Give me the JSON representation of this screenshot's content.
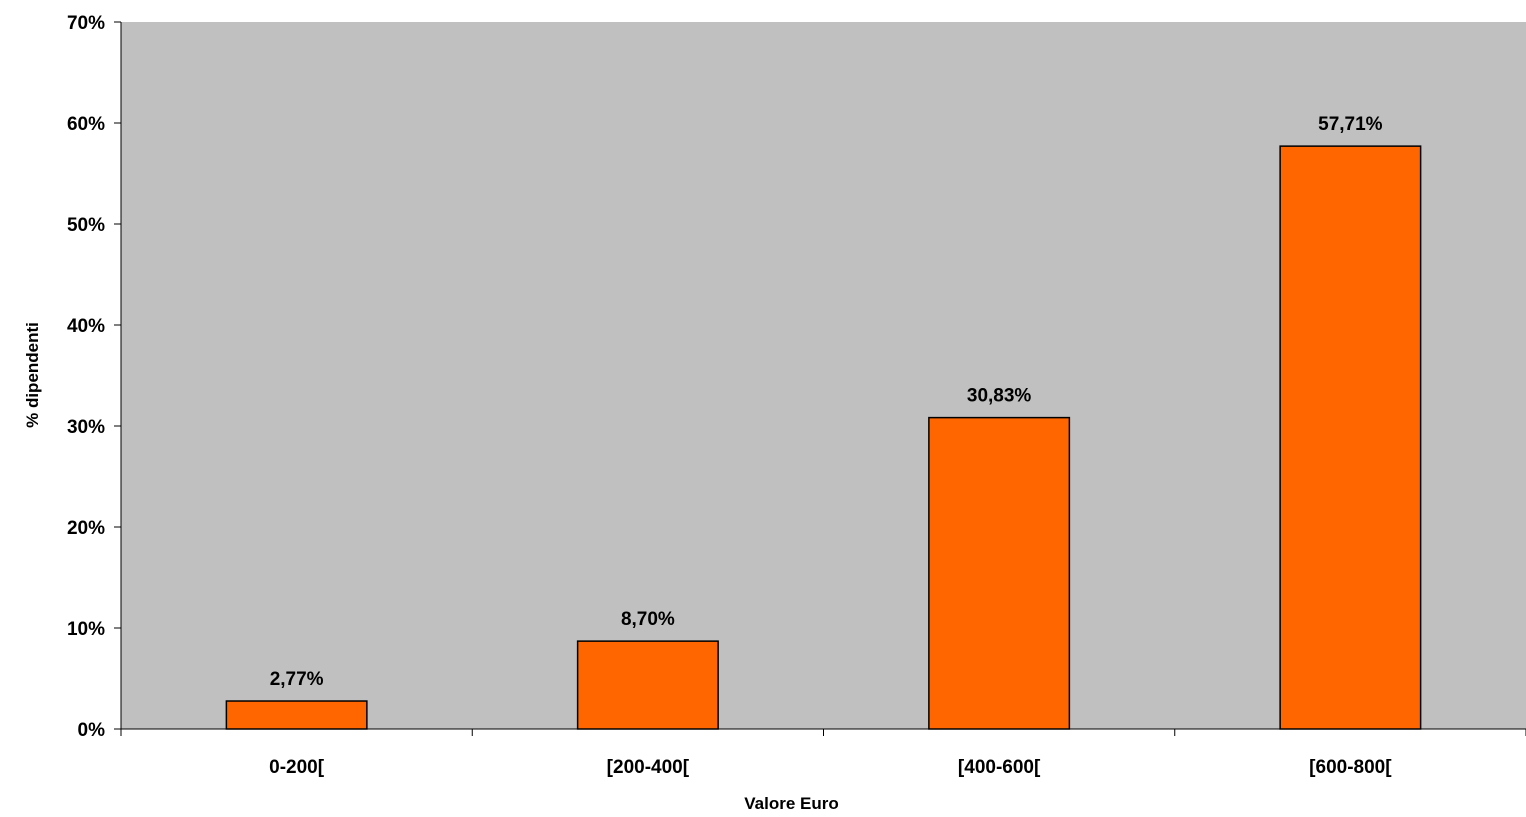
{
  "chart_data": {
    "type": "bar",
    "categories": [
      "0-200[",
      "[200-400[",
      "[400-600[",
      "[600-800["
    ],
    "values": [
      2.77,
      8.7,
      30.83,
      57.71
    ],
    "value_labels": [
      "2,77%",
      "8,70%",
      "30,83%",
      "57,71%"
    ],
    "title": "",
    "xlabel": "Valore Euro",
    "ylabel": "% dipendenti",
    "ylim": [
      0,
      70
    ],
    "yticks": [
      0,
      10,
      20,
      30,
      40,
      50,
      60,
      70
    ],
    "ytick_labels": [
      "0%",
      "10%",
      "20%",
      "30%",
      "40%",
      "50%",
      "60%",
      "70%"
    ],
    "grid": false,
    "legend": "none",
    "colors": {
      "plot_background": "#c0c0c0",
      "bar_fill": "#ff6600",
      "bar_stroke": "#000000",
      "axis": "#000000"
    }
  }
}
